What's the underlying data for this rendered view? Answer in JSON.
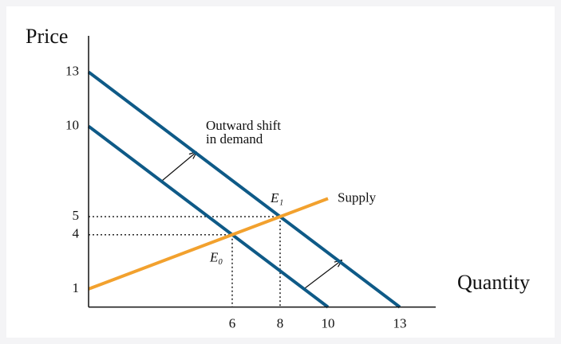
{
  "chart_data": {
    "type": "line",
    "xlabel": "Quantity",
    "ylabel": "Price",
    "xlim": [
      0,
      14.5
    ],
    "ylim": [
      0,
      15
    ],
    "xticks": [
      6,
      8,
      10,
      13
    ],
    "yticks": [
      1,
      4,
      5,
      10,
      13
    ],
    "series": [
      {
        "color": "#0e5a87",
        "x": [
          0,
          10
        ],
        "values": [
          10,
          0
        ]
      },
      {
        "color": "#0e5a87",
        "x": [
          0,
          13
        ],
        "values": [
          13,
          0
        ]
      },
      {
        "name": "Supply",
        "color": "#f2a12e",
        "x": [
          0,
          10
        ],
        "values": [
          1,
          6
        ]
      }
    ],
    "equilibria": [
      {
        "label": "E₀",
        "x": 6,
        "y": 4
      },
      {
        "label": "E₁",
        "x": 8,
        "y": 5
      }
    ],
    "shift_label": [
      "Outward shift",
      "in demand"
    ]
  }
}
